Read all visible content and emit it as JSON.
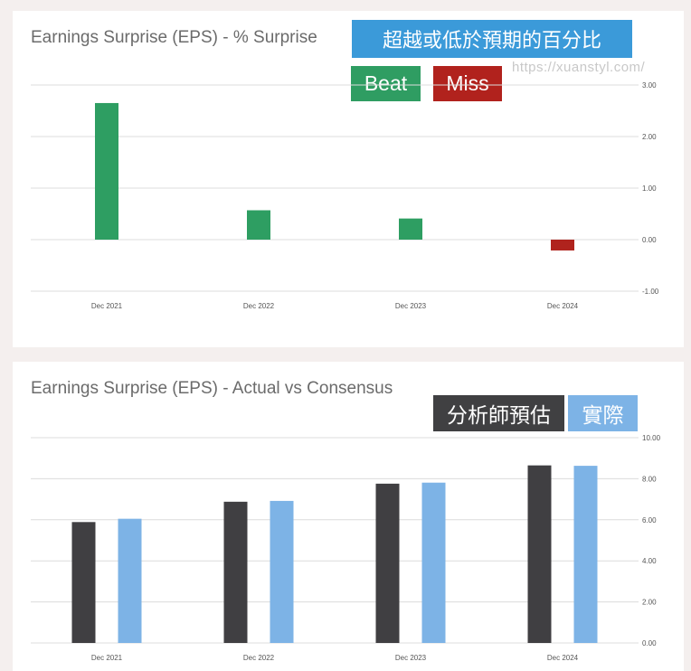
{
  "panel1": {
    "title": "Earnings Surprise (EPS) - % Surprise",
    "tag_title": "超越或低於預期的百分比",
    "tag_beat": "Beat",
    "tag_miss": "Miss",
    "watermark": "https://xuanstyl.com/"
  },
  "panel2": {
    "title": "Earnings Surprise (EPS) - Actual vs Consensus",
    "tag_analyst": "分析師預估",
    "tag_actual": "實際"
  },
  "colors": {
    "beat": "#2e9e62",
    "miss": "#b0231d",
    "analyst": "#403f42",
    "actual": "#7db3e6",
    "grid": "#dcdcdc"
  },
  "chart_data": [
    {
      "type": "bar",
      "title": "Earnings Surprise (EPS) - % Surprise",
      "categories": [
        "Dec 2021",
        "Dec 2022",
        "Dec 2023",
        "Dec 2024"
      ],
      "values": [
        2.65,
        0.57,
        0.41,
        -0.21
      ],
      "ylim": [
        -1,
        3
      ],
      "yticks": [
        "-1.00",
        "0.00",
        "1.00",
        "2.00",
        "3.00"
      ],
      "ytick_values": [
        -1,
        0,
        1,
        2,
        3
      ],
      "grid": true,
      "y_axis_side": "right"
    },
    {
      "type": "bar",
      "title": "Earnings Surprise (EPS) - Actual vs Consensus",
      "categories": [
        "Dec 2021",
        "Dec 2022",
        "Dec 2023",
        "Dec 2024"
      ],
      "series": [
        {
          "name": "分析師預估",
          "values": [
            5.89,
            6.88,
            7.76,
            8.65
          ]
        },
        {
          "name": "實際",
          "values": [
            6.05,
            6.92,
            7.81,
            8.63
          ]
        }
      ],
      "ylim": [
        0,
        10
      ],
      "yticks": [
        "0.00",
        "2.00",
        "4.00",
        "6.00",
        "8.00",
        "10.00"
      ],
      "ytick_values": [
        0,
        2,
        4,
        6,
        8,
        10
      ],
      "grid": true,
      "y_axis_side": "right"
    }
  ]
}
